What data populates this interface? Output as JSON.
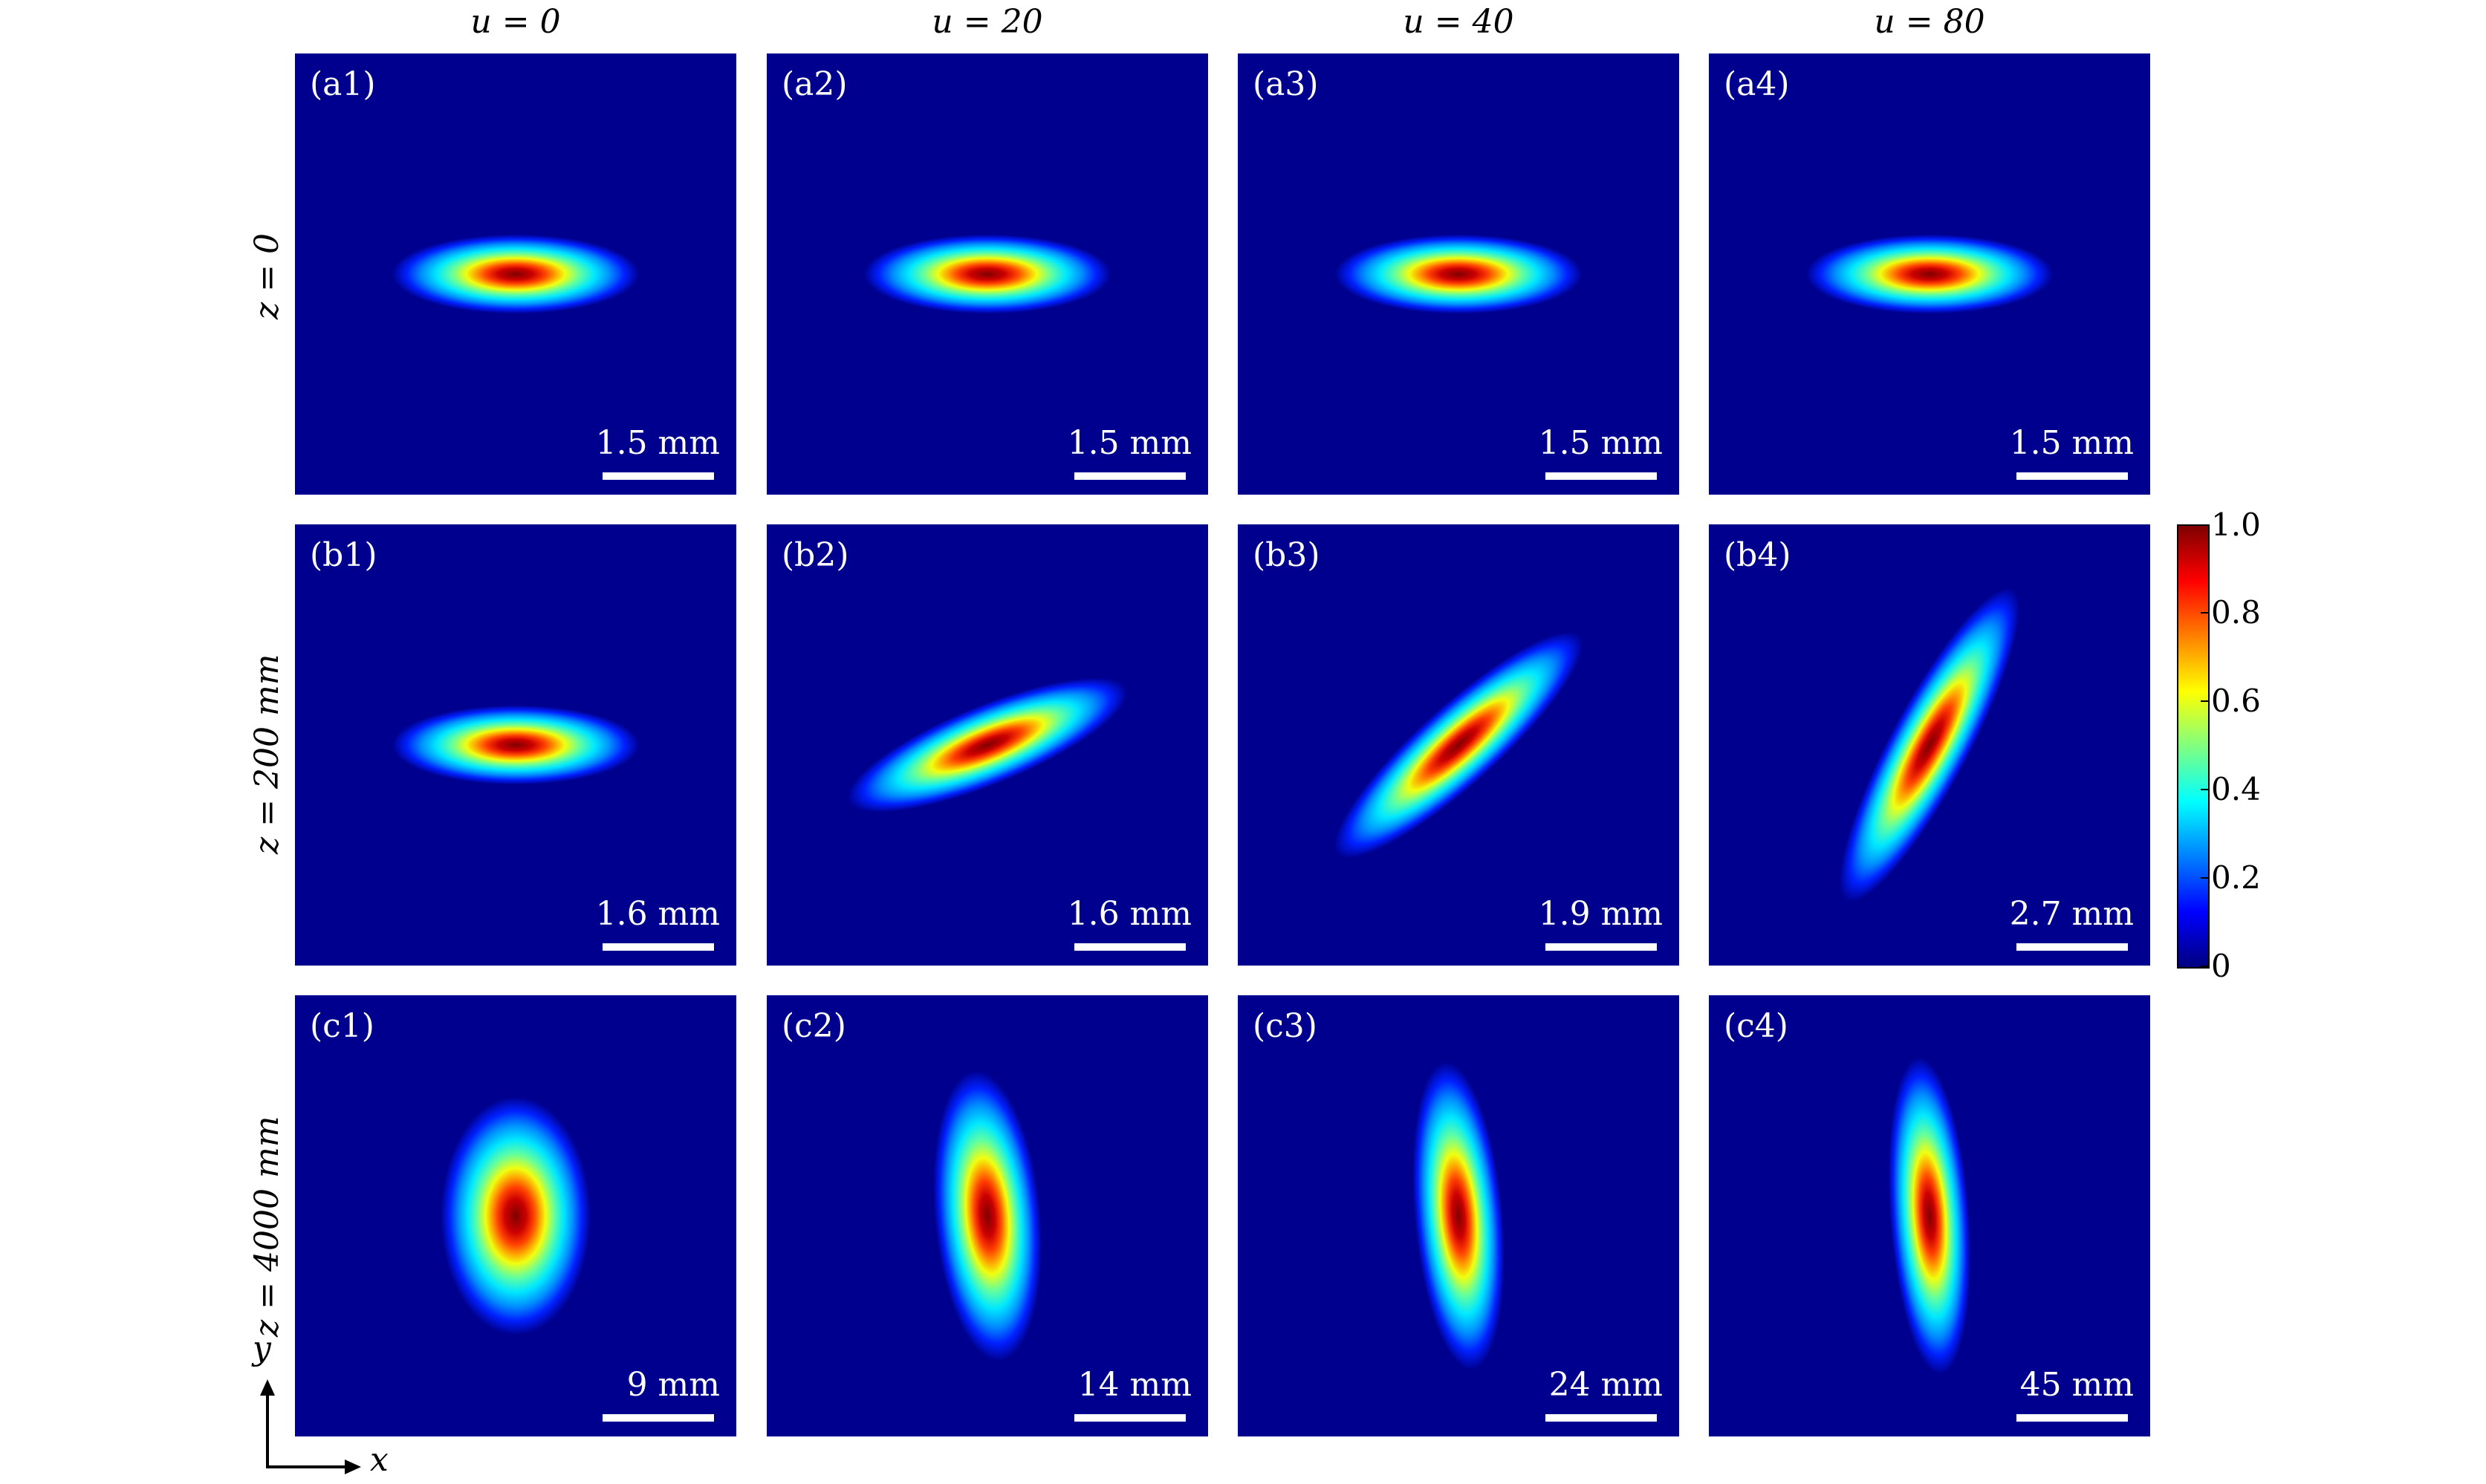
{
  "columns": [
    "u = 0",
    "u = 20",
    "u = 40",
    "u = 80"
  ],
  "rows": [
    "z = 0",
    "z = 200 mm",
    "z = 4000 mm"
  ],
  "panels": [
    [
      {
        "label": "(a1)",
        "scale": "1.5 mm",
        "rx": 0.28,
        "ry": 0.09,
        "angle": 0
      },
      {
        "label": "(a2)",
        "scale": "1.5 mm",
        "rx": 0.28,
        "ry": 0.09,
        "angle": 0
      },
      {
        "label": "(a3)",
        "scale": "1.5 mm",
        "rx": 0.28,
        "ry": 0.09,
        "angle": 0
      },
      {
        "label": "(a4)",
        "scale": "1.5 mm",
        "rx": 0.28,
        "ry": 0.09,
        "angle": 0
      }
    ],
    [
      {
        "label": "(b1)",
        "scale": "1.6 mm",
        "rx": 0.28,
        "ry": 0.09,
        "angle": 0
      },
      {
        "label": "(b2)",
        "scale": "1.6 mm",
        "rx": 0.34,
        "ry": 0.09,
        "angle": -22
      },
      {
        "label": "(b3)",
        "scale": "1.9 mm",
        "rx": 0.37,
        "ry": 0.09,
        "angle": -42
      },
      {
        "label": "(b4)",
        "scale": "2.7 mm",
        "rx": 0.4,
        "ry": 0.09,
        "angle": -62
      }
    ],
    [
      {
        "label": "(c1)",
        "scale": "9 mm",
        "rx": 0.17,
        "ry": 0.27,
        "angle": 0
      },
      {
        "label": "(c2)",
        "scale": "14 mm",
        "rx": 0.12,
        "ry": 0.33,
        "angle": -5
      },
      {
        "label": "(c3)",
        "scale": "24 mm",
        "rx": 0.1,
        "ry": 0.35,
        "angle": -5
      },
      {
        "label": "(c4)",
        "scale": "45 mm",
        "rx": 0.09,
        "ry": 0.36,
        "angle": -4
      }
    ]
  ],
  "colorbar": {
    "ticks": [
      "0",
      "0.2",
      "0.4",
      "0.6",
      "0.8",
      "1.0"
    ],
    "min": 0,
    "max": 1
  },
  "axes": {
    "x": "x",
    "y": "y"
  }
}
